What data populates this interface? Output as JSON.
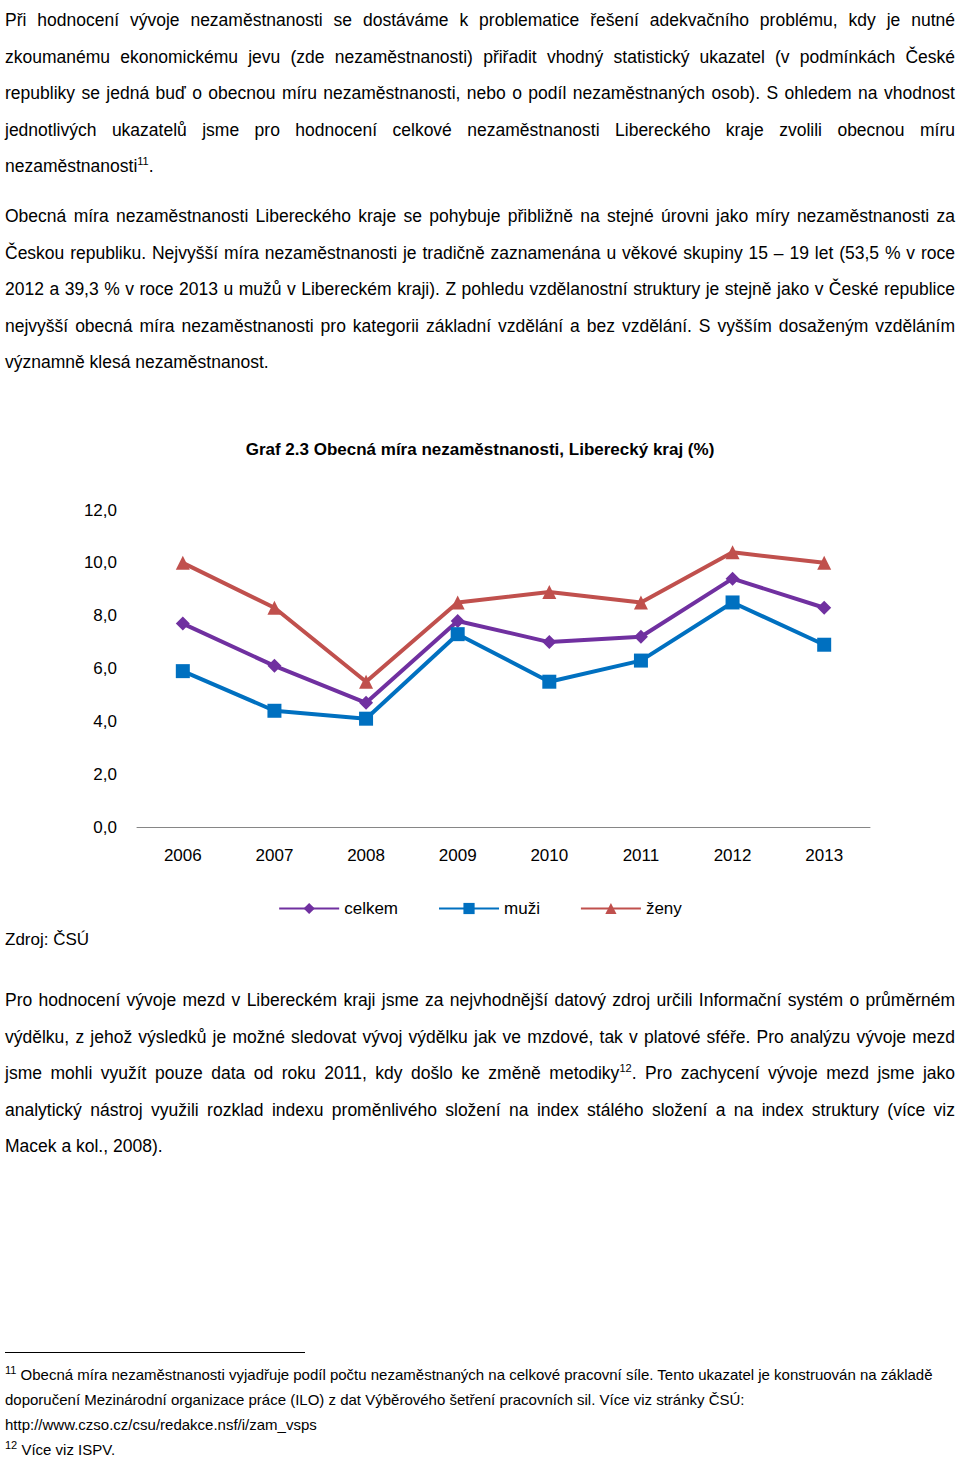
{
  "paragraphs_top": [
    [
      {
        "text": "Při hodnocení vývoje nezaměstnanosti se dostáváme k problematice řešení adekvačního problému, kdy je nutné zkoumanému ekonomickému jevu (zde nezaměstnanosti) přiřadit vhodný statistický ukazatel (v podmínkách České republiky se jedná buď o obecnou míru nezaměstnanosti, nebo o podíl nezaměstnaných osob). S ohledem na vhodnost jednotlivých ukazatelů jsme pro hodnocení celkové nezaměstnanosti Libereckého kraje zvolili obecnou míru nezaměstnanosti"
      },
      {
        "sup": "11"
      },
      {
        "text": "."
      }
    ],
    [
      {
        "text": "Obecná míra nezaměstnanosti Libereckého kraje se pohybuje přibližně na stejné úrovni jako míry nezaměstnanosti za Českou republiku. Nejvyšší míra nezaměstnanosti je tradičně zaznamenána u věkové skupiny 15 – 19 let (53,5 % v roce 2012 a 39,3 % v roce 2013 u mužů v Libereckém kraji). Z pohledu vzdělanostní struktury je stejně jako v České republice nejvyšší obecná míra nezaměstnanosti pro kategorii základní vzdělání a bez vzdělání. S vyšším dosaženým vzděláním významně klesá nezaměstnanost."
      }
    ]
  ],
  "chart_data": {
    "type": "line",
    "title": "Graf 2.3 Obecná míra nezaměstnanosti, Liberecký kraj (%)",
    "categories": [
      "2006",
      "2007",
      "2008",
      "2009",
      "2010",
      "2011",
      "2012",
      "2013"
    ],
    "series": [
      {
        "name": "celkem",
        "color": "#7030a0",
        "marker": "diamond",
        "values": [
          7.7,
          6.1,
          4.7,
          7.8,
          7.0,
          7.2,
          9.4,
          8.3
        ]
      },
      {
        "name": "muži",
        "color": "#0070c0",
        "marker": "square",
        "values": [
          5.9,
          4.4,
          4.1,
          7.3,
          5.5,
          6.3,
          8.5,
          6.9
        ]
      },
      {
        "name": "ženy",
        "color": "#c0504d",
        "marker": "triangle",
        "values": [
          10.0,
          8.3,
          5.5,
          8.5,
          8.9,
          8.5,
          10.4,
          10.0
        ]
      }
    ],
    "ylim": [
      0,
      12
    ],
    "yticks": [
      {
        "value": 0,
        "label": "0,0"
      },
      {
        "value": 2,
        "label": "2,0"
      },
      {
        "value": 4,
        "label": "4,0"
      },
      {
        "value": 6,
        "label": "6,0"
      },
      {
        "value": 8,
        "label": "8,0"
      },
      {
        "value": 10,
        "label": "10,0"
      },
      {
        "value": 12,
        "label": "12,0"
      }
    ],
    "grid": false,
    "legend": "bottom"
  },
  "source": "Zdroj: ČSÚ",
  "paragraphs_bottom": [
    [
      {
        "text": "Pro hodnocení vývoje mezd v Libereckém kraji jsme za nejvhodnější datový zdroj určili Informační systém o průměrném výdělku, z jehož výsledků je možné sledovat vývoj výdělku jak ve mzdové, tak v platové sféře. Pro analýzu vývoje mezd jsme mohli využít pouze data od roku 2011, kdy došlo ke změně metodiky"
      },
      {
        "sup": "12"
      },
      {
        "text": ". Pro zachycení vývoje mezd jsme jako analytický nástroj využili rozklad indexu proměnlivého složení na index stálého složení a na index struktury (více viz Macek a kol., 2008)."
      }
    ]
  ],
  "footnotes": [
    {
      "number": "11",
      "text": "Obecná míra nezaměstnanosti vyjadřuje podíl počtu nezaměstnaných na celkové pracovní síle. Tento ukazatel je konstruován na základě doporučení Mezinárodní organizace práce (ILO) z dat Výběrového šetření pracovních sil. Více viz stránky ČSÚ: http://www.czso.cz/csu/redakce.nsf/i/zam_vsps"
    },
    {
      "number": "12",
      "text": "Více viz ISPV."
    }
  ]
}
